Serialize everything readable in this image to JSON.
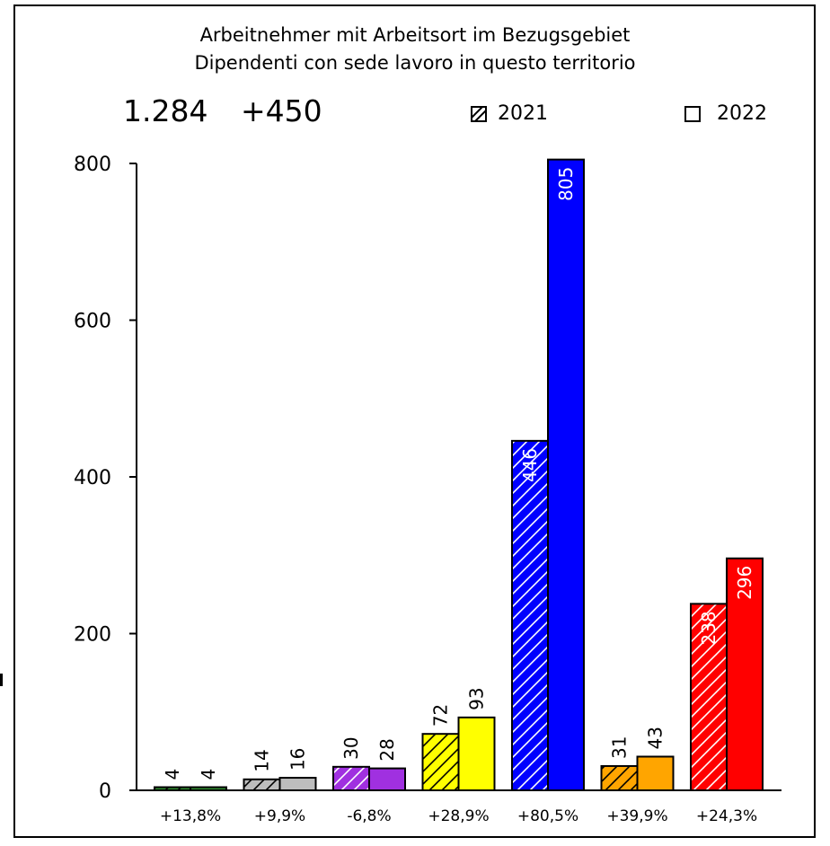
{
  "chart_data": {
    "type": "bar",
    "title": "Arbeitnehmer mit Arbeitsort im Bezugsgebiet",
    "subtitle": "Dipendenti con sede lavoro in questo territorio",
    "total": "1.284",
    "total_change": "+450",
    "ylim": [
      0,
      800
    ],
    "y_ticks": [
      "0",
      "200",
      "400",
      "600",
      "800"
    ],
    "categories": [
      "+13,8%",
      "+9,9%",
      "-6,8%",
      "+28,9%",
      "+80,5%",
      "+39,9%",
      "+24,3%"
    ],
    "colors": [
      "#2e8b2e",
      "#bdbdbd",
      "#a030e0",
      "#ffff00",
      "#0000ff",
      "#ffa500",
      "#ff0000"
    ],
    "series": [
      {
        "name": "2021",
        "pattern": "hatched",
        "values": [
          4,
          14,
          30,
          72,
          446,
          31,
          238
        ],
        "labels": [
          "4",
          "14",
          "30",
          "72",
          "446",
          "31",
          "238"
        ]
      },
      {
        "name": "2022",
        "pattern": "solid",
        "values": [
          4,
          16,
          28,
          93,
          805,
          43,
          296
        ],
        "labels": [
          "4",
          "16",
          "28",
          "93",
          "805",
          "43",
          "296"
        ]
      }
    ],
    "inside_label_bars": [
      4,
      6
    ],
    "grid": false,
    "legend_position": "top-right"
  }
}
